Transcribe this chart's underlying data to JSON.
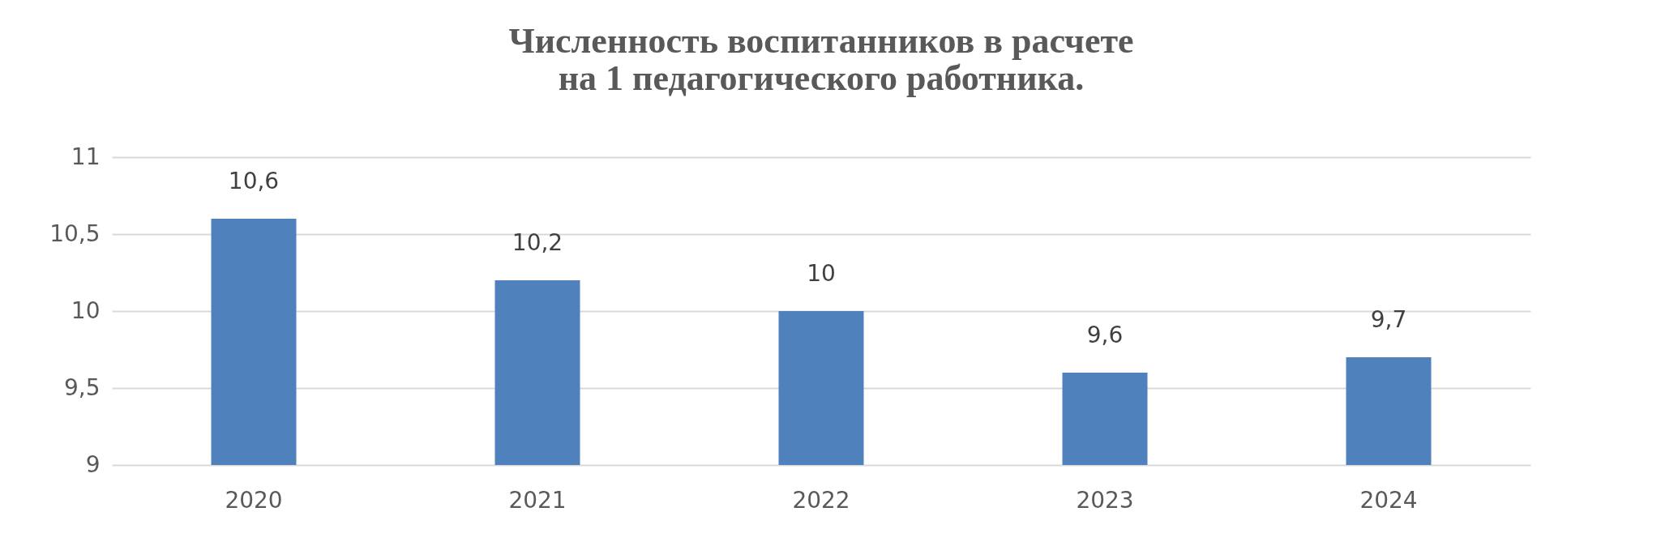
{
  "chart_data": {
    "type": "bar",
    "title": "Численность воспитанников в расчете\nна 1 педагогического работника.",
    "categories": [
      "2020",
      "2021",
      "2022",
      "2023",
      "2024"
    ],
    "values": [
      10.6,
      10.2,
      10,
      9.6,
      9.7
    ],
    "value_labels": [
      "10,6",
      "10,2",
      "10",
      "9,6",
      "9,7"
    ],
    "color": "#4f81bd",
    "ylim": [
      9,
      11
    ],
    "yticks": [
      9,
      {
        "value": 9.5,
        "label": "9,5"
      },
      10,
      {
        "value": 10.5,
        "label": "10,5"
      },
      11
    ],
    "grid": "y"
  }
}
